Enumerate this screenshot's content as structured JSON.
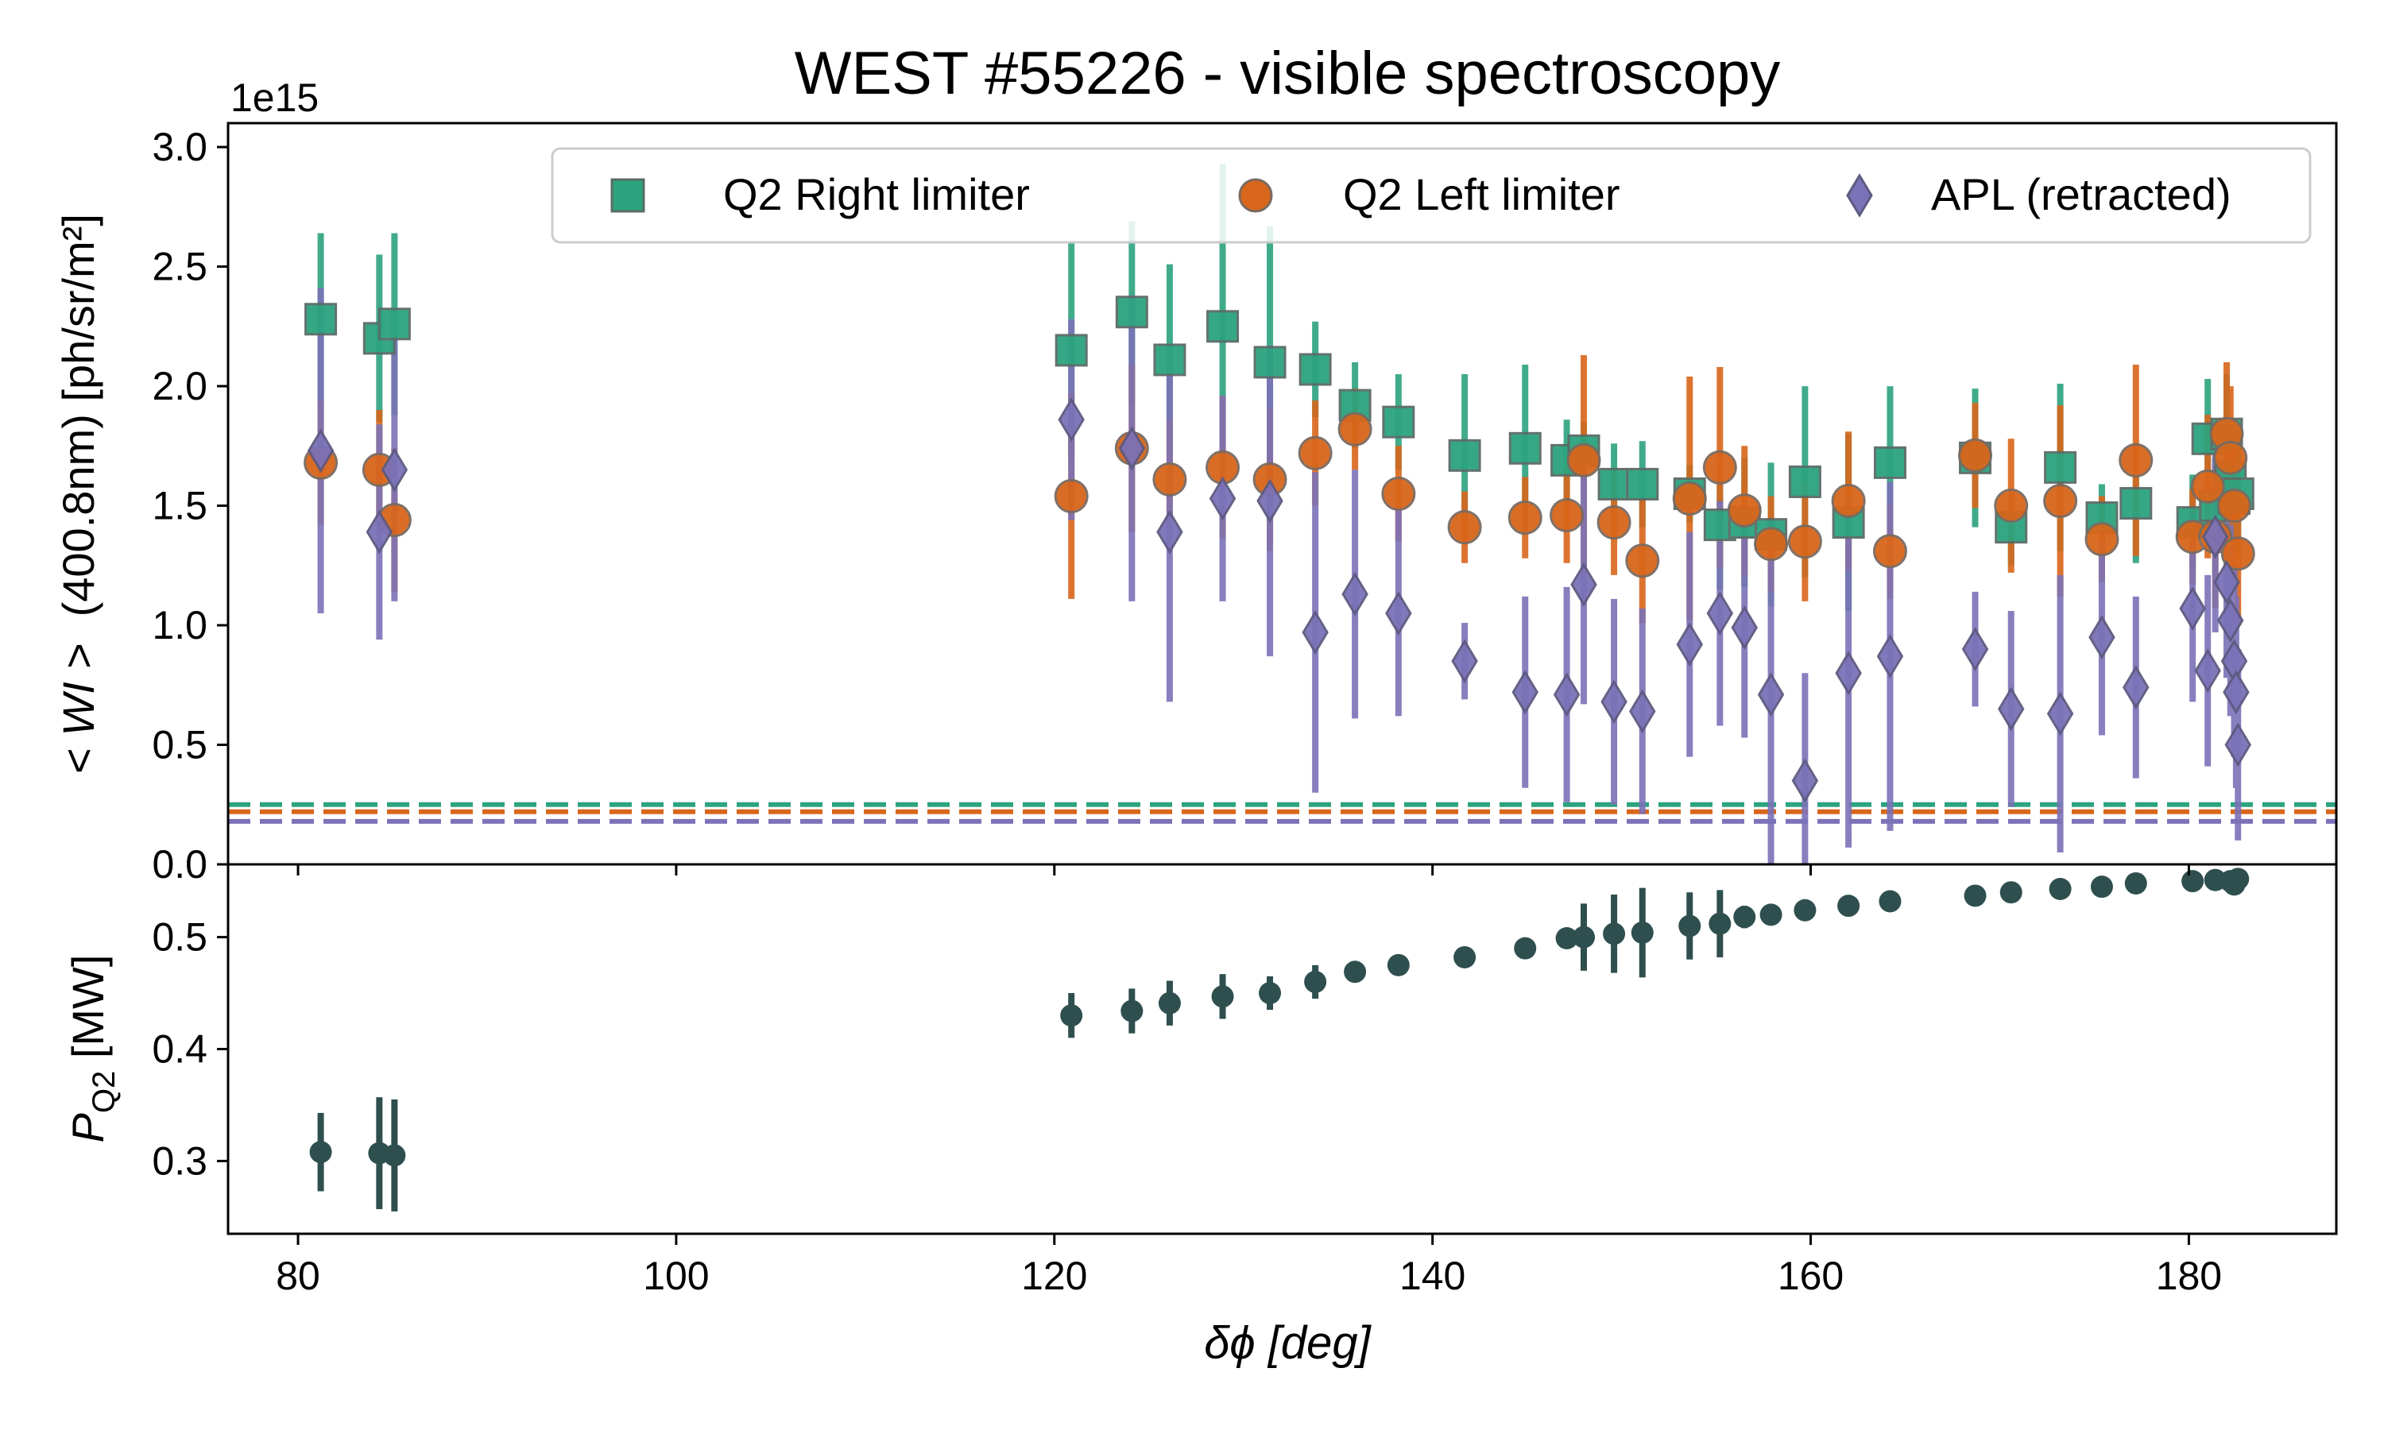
{
  "chart_data": [
    {
      "type": "scatter",
      "title": "WEST #55226 - visible spectroscopy",
      "ylabel_prefix": "< WI >",
      "ylabel_suffix": "(400.8nm) [ph/sr/m²]",
      "y_offset_label": "1e15",
      "xlim": [
        76.3,
        187.8
      ],
      "ylim": [
        0,
        3.1
      ],
      "yticks": [
        "0.0",
        "0.5",
        "1.0",
        "1.5",
        "2.0",
        "2.5",
        "3.0"
      ],
      "legend": "top-right",
      "baselines": [
        {
          "series": "Q2 Right limiter",
          "y": 0.25
        },
        {
          "series": "Q2 Left limiter",
          "y": 0.22
        },
        {
          "series": "APL (retracted)",
          "y": 0.18
        }
      ],
      "series": [
        {
          "name": "Q2 Right limiter",
          "marker": "square",
          "color": "#2ca37f",
          "points": [
            {
              "x": 81.2,
              "y": 2.28,
              "err": 0.36
            },
            {
              "x": 84.3,
              "y": 2.2,
              "err": 0.35
            },
            {
              "x": 85.1,
              "y": 2.26,
              "err": 0.38
            },
            {
              "x": 120.9,
              "y": 2.15,
              "err": 0.45
            },
            {
              "x": 124.1,
              "y": 2.31,
              "err": 0.38
            },
            {
              "x": 126.1,
              "y": 2.11,
              "err": 0.4
            },
            {
              "x": 128.9,
              "y": 2.25,
              "err": 0.68
            },
            {
              "x": 131.4,
              "y": 2.1,
              "err": 0.57
            },
            {
              "x": 133.8,
              "y": 2.07,
              "err": 0.2
            },
            {
              "x": 135.9,
              "y": 1.92,
              "err": 0.18
            },
            {
              "x": 138.2,
              "y": 1.85,
              "err": 0.2
            },
            {
              "x": 141.7,
              "y": 1.71,
              "err": 0.34
            },
            {
              "x": 144.9,
              "y": 1.74,
              "err": 0.35
            },
            {
              "x": 147.1,
              "y": 1.69,
              "err": 0.17
            },
            {
              "x": 148.0,
              "y": 1.73,
              "err": 0.12
            },
            {
              "x": 149.6,
              "y": 1.59,
              "err": 0.17
            },
            {
              "x": 151.1,
              "y": 1.59,
              "err": 0.18
            },
            {
              "x": 153.6,
              "y": 1.55,
              "err": 0.12
            },
            {
              "x": 155.2,
              "y": 1.42,
              "err": 0.27
            },
            {
              "x": 156.5,
              "y": 1.43,
              "err": 0.27
            },
            {
              "x": 157.9,
              "y": 1.38,
              "err": 0.3
            },
            {
              "x": 159.7,
              "y": 1.6,
              "err": 0.4
            },
            {
              "x": 162.0,
              "y": 1.43,
              "err": 0.37
            },
            {
              "x": 164.2,
              "y": 1.68,
              "err": 0.32
            },
            {
              "x": 168.7,
              "y": 1.7,
              "err": 0.29
            },
            {
              "x": 170.6,
              "y": 1.41,
              "err": 0.16
            },
            {
              "x": 173.2,
              "y": 1.66,
              "err": 0.35
            },
            {
              "x": 175.4,
              "y": 1.45,
              "err": 0.14
            },
            {
              "x": 177.2,
              "y": 1.51,
              "err": 0.25
            },
            {
              "x": 180.2,
              "y": 1.43,
              "err": 0.2
            },
            {
              "x": 181.0,
              "y": 1.78,
              "err": 0.25
            },
            {
              "x": 181.4,
              "y": 1.5,
              "err": 0.2
            },
            {
              "x": 182.0,
              "y": 1.8,
              "err": 0.25
            },
            {
              "x": 182.2,
              "y": 1.62,
              "err": 0.25
            },
            {
              "x": 182.4,
              "y": 1.53,
              "err": 0.25
            },
            {
              "x": 182.6,
              "y": 1.55,
              "err": 0.25
            }
          ]
        },
        {
          "name": "Q2 Left limiter",
          "marker": "circle",
          "color": "#d9661a",
          "points": [
            {
              "x": 81.2,
              "y": 1.68,
              "err": 0.26
            },
            {
              "x": 84.3,
              "y": 1.65,
              "err": 0.25
            },
            {
              "x": 85.1,
              "y": 1.44,
              "err": 0.3
            },
            {
              "x": 120.9,
              "y": 1.54,
              "err": 0.43
            },
            {
              "x": 124.1,
              "y": 1.74,
              "err": 0.35
            },
            {
              "x": 126.1,
              "y": 1.61,
              "err": 0.25
            },
            {
              "x": 128.9,
              "y": 1.66,
              "err": 0.3
            },
            {
              "x": 131.4,
              "y": 1.61,
              "err": 0.3
            },
            {
              "x": 133.8,
              "y": 1.72,
              "err": 0.22
            },
            {
              "x": 135.9,
              "y": 1.82,
              "err": 0.17
            },
            {
              "x": 138.2,
              "y": 1.55,
              "err": 0.2
            },
            {
              "x": 141.7,
              "y": 1.41,
              "err": 0.15
            },
            {
              "x": 144.9,
              "y": 1.45,
              "err": 0.17
            },
            {
              "x": 147.1,
              "y": 1.46,
              "err": 0.2
            },
            {
              "x": 148.0,
              "y": 1.69,
              "err": 0.44
            },
            {
              "x": 149.6,
              "y": 1.43,
              "err": 0.22
            },
            {
              "x": 151.1,
              "y": 1.27,
              "err": 0.26
            },
            {
              "x": 153.6,
              "y": 1.53,
              "err": 0.51
            },
            {
              "x": 155.2,
              "y": 1.66,
              "err": 0.42
            },
            {
              "x": 156.5,
              "y": 1.48,
              "err": 0.27
            },
            {
              "x": 157.9,
              "y": 1.34,
              "err": 0.2
            },
            {
              "x": 159.7,
              "y": 1.35,
              "err": 0.25
            },
            {
              "x": 162.0,
              "y": 1.52,
              "err": 0.29
            },
            {
              "x": 164.2,
              "y": 1.31,
              "err": 0.2
            },
            {
              "x": 168.7,
              "y": 1.71,
              "err": 0.22
            },
            {
              "x": 170.6,
              "y": 1.5,
              "err": 0.28
            },
            {
              "x": 173.2,
              "y": 1.52,
              "err": 0.4
            },
            {
              "x": 175.4,
              "y": 1.36,
              "err": 0.18
            },
            {
              "x": 177.2,
              "y": 1.69,
              "err": 0.4
            },
            {
              "x": 180.2,
              "y": 1.37,
              "err": 0.2
            },
            {
              "x": 181.0,
              "y": 1.58,
              "err": 0.3
            },
            {
              "x": 181.4,
              "y": 1.37,
              "err": 0.3
            },
            {
              "x": 182.0,
              "y": 1.8,
              "err": 0.3
            },
            {
              "x": 182.2,
              "y": 1.7,
              "err": 0.3
            },
            {
              "x": 182.4,
              "y": 1.5,
              "err": 0.3
            },
            {
              "x": 182.6,
              "y": 1.3,
              "err": 0.3
            }
          ]
        },
        {
          "name": "APL (retracted)",
          "marker": "diamond",
          "color": "#7b72b8",
          "points": [
            {
              "x": 81.2,
              "y": 1.73,
              "err": 0.68
            },
            {
              "x": 84.3,
              "y": 1.39,
              "err": 0.45
            },
            {
              "x": 85.1,
              "y": 1.65,
              "err": 0.55
            },
            {
              "x": 120.9,
              "y": 1.86,
              "err": 0.42
            },
            {
              "x": 124.1,
              "y": 1.74,
              "err": 0.64
            },
            {
              "x": 126.1,
              "y": 1.39,
              "err": 0.71
            },
            {
              "x": 128.9,
              "y": 1.53,
              "err": 0.43
            },
            {
              "x": 131.4,
              "y": 1.52,
              "err": 0.65
            },
            {
              "x": 133.8,
              "y": 0.97,
              "err": 0.67
            },
            {
              "x": 135.9,
              "y": 1.13,
              "err": 0.52
            },
            {
              "x": 138.2,
              "y": 1.05,
              "err": 0.43
            },
            {
              "x": 141.7,
              "y": 0.85,
              "err": 0.16
            },
            {
              "x": 144.9,
              "y": 0.72,
              "err": 0.4
            },
            {
              "x": 147.1,
              "y": 0.71,
              "err": 0.45
            },
            {
              "x": 148.0,
              "y": 1.17,
              "err": 0.5
            },
            {
              "x": 149.6,
              "y": 0.68,
              "err": 0.43
            },
            {
              "x": 151.1,
              "y": 0.64,
              "err": 0.43
            },
            {
              "x": 153.6,
              "y": 0.92,
              "err": 0.47
            },
            {
              "x": 155.2,
              "y": 1.05,
              "err": 0.47
            },
            {
              "x": 156.5,
              "y": 0.99,
              "err": 0.46
            },
            {
              "x": 157.9,
              "y": 0.71,
              "err": 0.73
            },
            {
              "x": 159.7,
              "y": 0.35,
              "err": 0.45
            },
            {
              "x": 162.0,
              "y": 0.8,
              "err": 0.73
            },
            {
              "x": 164.2,
              "y": 0.87,
              "err": 0.73
            },
            {
              "x": 168.7,
              "y": 0.9,
              "err": 0.24
            },
            {
              "x": 170.6,
              "y": 0.65,
              "err": 0.41
            },
            {
              "x": 173.2,
              "y": 0.63,
              "err": 0.58
            },
            {
              "x": 175.4,
              "y": 0.95,
              "err": 0.41
            },
            {
              "x": 177.2,
              "y": 0.74,
              "err": 0.38
            },
            {
              "x": 180.2,
              "y": 1.07,
              "err": 0.39
            },
            {
              "x": 181.0,
              "y": 0.81,
              "err": 0.4
            },
            {
              "x": 181.4,
              "y": 1.37,
              "err": 0.4
            },
            {
              "x": 182.0,
              "y": 1.18,
              "err": 0.4
            },
            {
              "x": 182.2,
              "y": 1.02,
              "err": 0.4
            },
            {
              "x": 182.4,
              "y": 0.85,
              "err": 0.4
            },
            {
              "x": 182.5,
              "y": 0.72,
              "err": 0.4
            },
            {
              "x": 182.6,
              "y": 0.5,
              "err": 0.4
            }
          ]
        }
      ]
    },
    {
      "type": "scatter",
      "ylabel_main": "P",
      "ylabel_sub": "Q2",
      "ylabel_unit": " [MW]",
      "xlabel": "δϕ [deg]",
      "xlim": [
        76.3,
        187.8
      ],
      "ylim": [
        0.235,
        0.565
      ],
      "xticks": [
        "80",
        "100",
        "120",
        "140",
        "160",
        "180"
      ],
      "yticks": [
        "0.3",
        "0.4",
        "0.5"
      ],
      "series": [
        {
          "marker": "circle",
          "color": "#2f4f4f",
          "points": [
            {
              "x": 81.2,
              "y": 0.308,
              "err": 0.035
            },
            {
              "x": 84.3,
              "y": 0.307,
              "err": 0.05
            },
            {
              "x": 85.1,
              "y": 0.305,
              "err": 0.05
            },
            {
              "x": 120.9,
              "y": 0.43,
              "err": 0.02
            },
            {
              "x": 124.1,
              "y": 0.434,
              "err": 0.02
            },
            {
              "x": 126.1,
              "y": 0.441,
              "err": 0.02
            },
            {
              "x": 128.9,
              "y": 0.447,
              "err": 0.02
            },
            {
              "x": 131.4,
              "y": 0.45,
              "err": 0.015
            },
            {
              "x": 133.8,
              "y": 0.46,
              "err": 0.015
            },
            {
              "x": 135.9,
              "y": 0.469,
              "err": 0.005
            },
            {
              "x": 138.2,
              "y": 0.475,
              "err": 0.005
            },
            {
              "x": 141.7,
              "y": 0.482,
              "err": 0.005
            },
            {
              "x": 144.9,
              "y": 0.49,
              "err": 0.005
            },
            {
              "x": 147.1,
              "y": 0.499,
              "err": 0.008
            },
            {
              "x": 148.0,
              "y": 0.5,
              "err": 0.03
            },
            {
              "x": 149.6,
              "y": 0.503,
              "err": 0.035
            },
            {
              "x": 151.1,
              "y": 0.504,
              "err": 0.04
            },
            {
              "x": 153.6,
              "y": 0.51,
              "err": 0.03
            },
            {
              "x": 155.2,
              "y": 0.512,
              "err": 0.03
            },
            {
              "x": 156.5,
              "y": 0.518,
              "err": 0.01
            },
            {
              "x": 157.9,
              "y": 0.52,
              "err": 0.005
            },
            {
              "x": 159.7,
              "y": 0.524,
              "err": 0.005
            },
            {
              "x": 162.0,
              "y": 0.528,
              "err": 0.005
            },
            {
              "x": 164.2,
              "y": 0.532,
              "err": 0.005
            },
            {
              "x": 168.7,
              "y": 0.537,
              "err": 0.005
            },
            {
              "x": 170.6,
              "y": 0.54,
              "err": 0.005
            },
            {
              "x": 173.2,
              "y": 0.543,
              "err": 0.005
            },
            {
              "x": 175.4,
              "y": 0.545,
              "err": 0.005
            },
            {
              "x": 177.2,
              "y": 0.548,
              "err": 0.005
            },
            {
              "x": 180.2,
              "y": 0.55,
              "err": 0.005
            },
            {
              "x": 181.4,
              "y": 0.551,
              "err": 0.005
            },
            {
              "x": 182.2,
              "y": 0.55,
              "err": 0.005
            },
            {
              "x": 182.4,
              "y": 0.547,
              "err": 0.005
            },
            {
              "x": 182.6,
              "y": 0.552,
              "err": 0.005
            }
          ]
        }
      ]
    }
  ]
}
